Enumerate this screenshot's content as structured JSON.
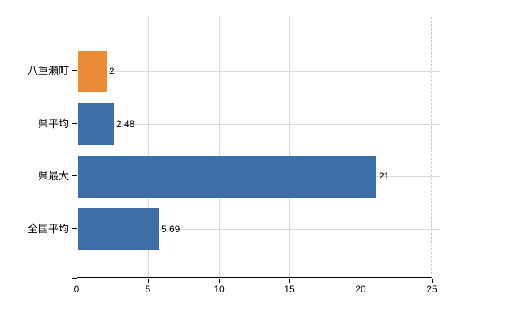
{
  "chart_data": {
    "type": "bar",
    "orientation": "horizontal",
    "title": "",
    "xlabel": "",
    "ylabel": "",
    "categories": [
      "八重瀬町",
      "県平均",
      "県最大",
      "全国平均"
    ],
    "values": [
      2,
      2.48,
      21,
      5.69
    ],
    "value_labels": [
      "2",
      "2.48",
      "21",
      "5.69"
    ],
    "bar_colors": [
      "#ec8b35",
      "#3d6fa6",
      "#3d6fa6",
      "#3d6fa6"
    ],
    "xlim": [
      0,
      25
    ],
    "x_ticks": [
      0,
      5,
      10,
      15,
      20,
      25
    ],
    "grid": true,
    "legend_position": "none"
  },
  "colors": {
    "background": "#ffffff",
    "axis": "#000000",
    "gridline": "#d9d9d9",
    "dashed_border": "#c9c9c9",
    "text": "#000000"
  }
}
